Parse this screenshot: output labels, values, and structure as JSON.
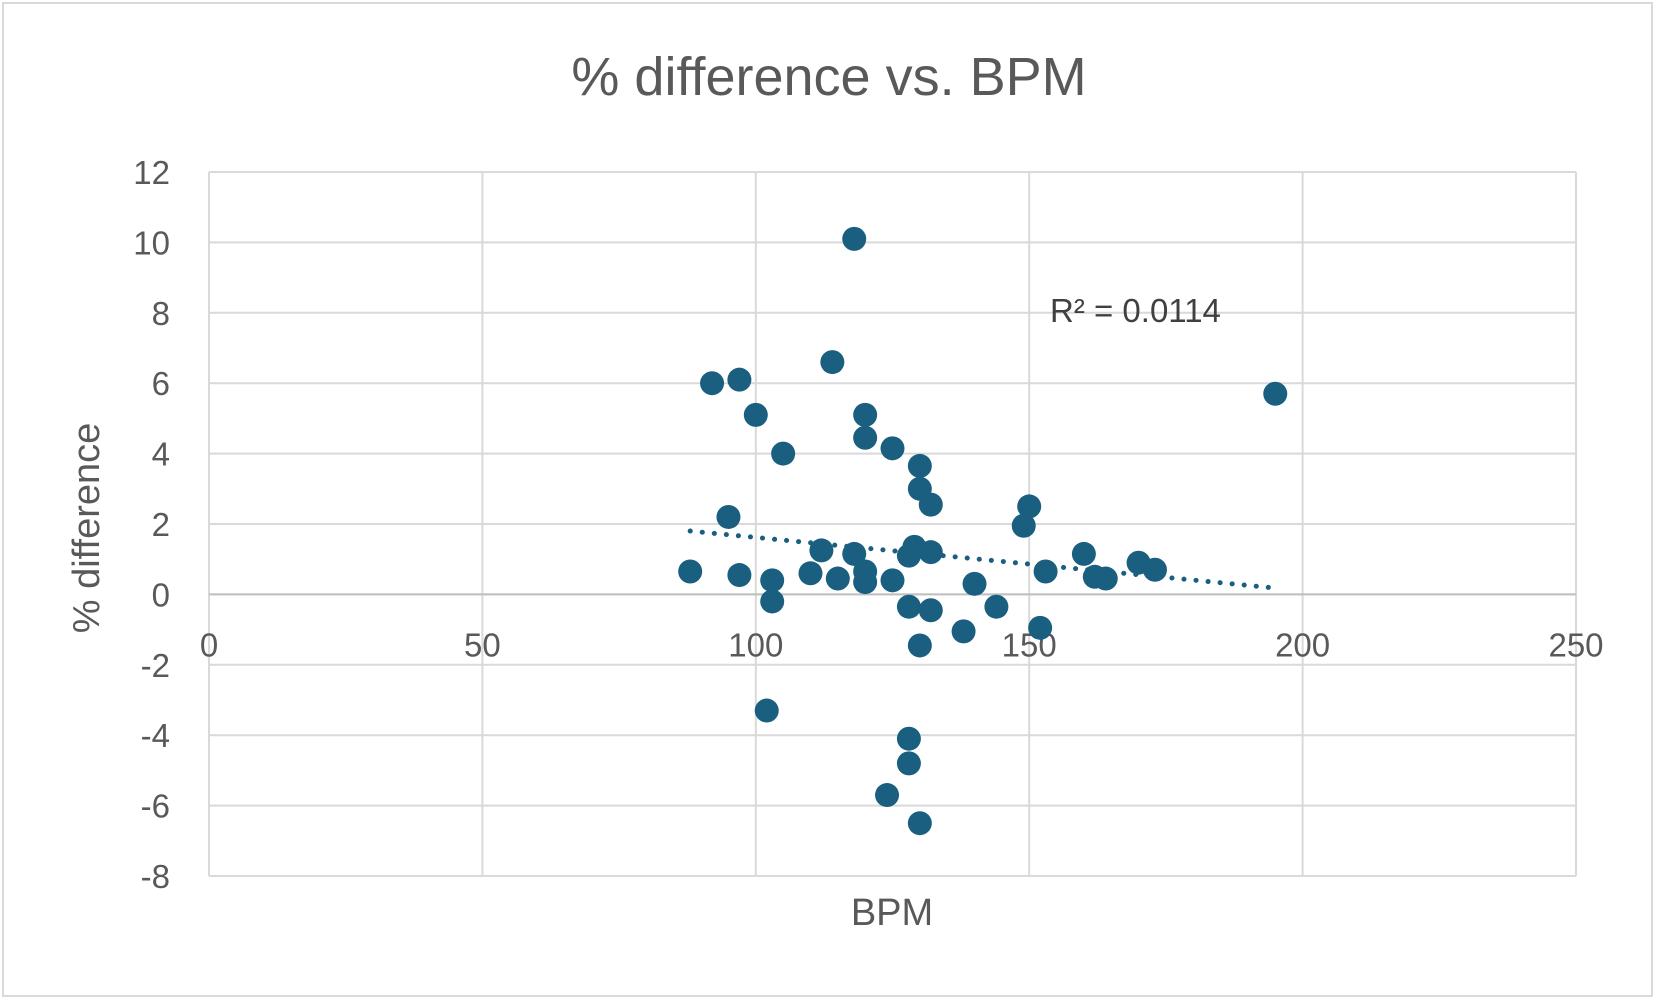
{
  "chart_data": {
    "type": "scatter",
    "title": "% difference vs. BPM",
    "xlabel": "BPM",
    "ylabel": "% difference",
    "xlim": [
      0,
      250
    ],
    "ylim": [
      -8,
      12
    ],
    "x_ticks": [
      0,
      50,
      100,
      150,
      200,
      250
    ],
    "y_ticks": [
      -8,
      -6,
      -4,
      -2,
      0,
      2,
      4,
      6,
      8,
      10,
      12
    ],
    "grid": true,
    "legend": "none",
    "colors": {
      "points": "#1a5f80",
      "trendline": "#1a5f80",
      "grid": "#d9d9d9",
      "text": "#595959"
    },
    "series": [
      {
        "points": [
          [
            88,
            0.65
          ],
          [
            92,
            6.0
          ],
          [
            95,
            2.2
          ],
          [
            97,
            6.1
          ],
          [
            97,
            0.55
          ],
          [
            100,
            5.1
          ],
          [
            102,
            -3.3
          ],
          [
            103,
            0.4
          ],
          [
            103,
            -0.2
          ],
          [
            105,
            4.0
          ],
          [
            110,
            0.6
          ],
          [
            112,
            1.25
          ],
          [
            114,
            6.6
          ],
          [
            115,
            0.45
          ],
          [
            118,
            10.1
          ],
          [
            118,
            1.15
          ],
          [
            120,
            5.1
          ],
          [
            120,
            4.45
          ],
          [
            120,
            0.65
          ],
          [
            120,
            0.35
          ],
          [
            124,
            -5.7
          ],
          [
            125,
            4.15
          ],
          [
            125,
            0.4
          ],
          [
            128,
            -0.35
          ],
          [
            128,
            1.1
          ],
          [
            128,
            -4.1
          ],
          [
            128,
            -4.8
          ],
          [
            129,
            1.35
          ],
          [
            130,
            3.65
          ],
          [
            130,
            3.0
          ],
          [
            130,
            -1.45
          ],
          [
            130,
            -6.5
          ],
          [
            132,
            2.55
          ],
          [
            132,
            1.2
          ],
          [
            132,
            -0.45
          ],
          [
            138,
            -1.05
          ],
          [
            140,
            0.3
          ],
          [
            144,
            -0.35
          ],
          [
            149,
            1.95
          ],
          [
            150,
            2.5
          ],
          [
            152,
            -0.95
          ],
          [
            153,
            0.65
          ],
          [
            160,
            1.15
          ],
          [
            162,
            0.5
          ],
          [
            164,
            0.45
          ],
          [
            170,
            0.9
          ],
          [
            173,
            0.7
          ],
          [
            195,
            5.7
          ]
        ]
      }
    ],
    "trendline": {
      "type": "linear",
      "style": "dotted",
      "x": [
        88,
        195
      ],
      "y": [
        1.8,
        0.18
      ],
      "r_squared_label": "R² = 0.0114"
    }
  }
}
